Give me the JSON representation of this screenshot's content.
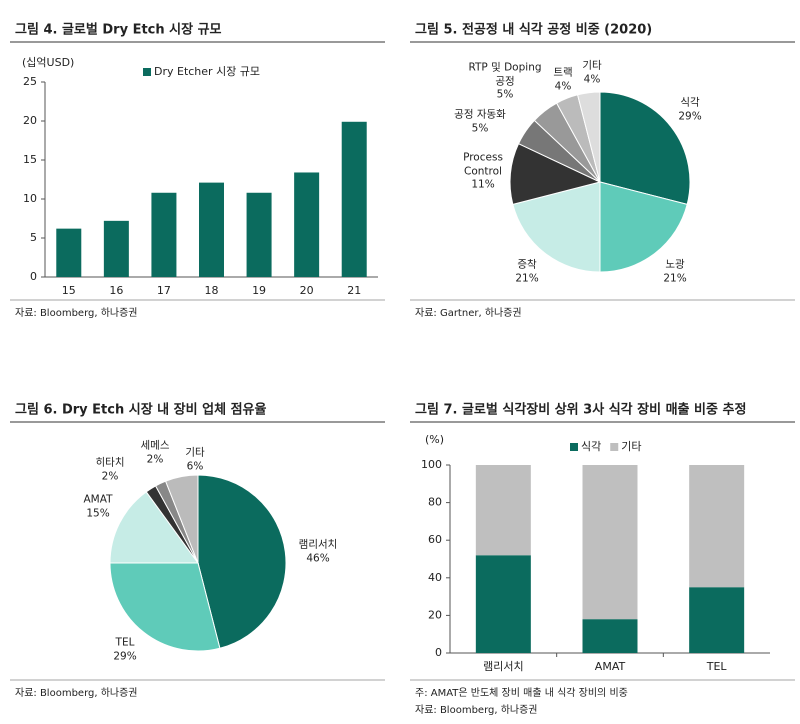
{
  "chart_data": [
    {
      "type": "bar",
      "title": "그림 4. 글로벌 Dry Etch 시장 규모",
      "y_label": "(십억USD)",
      "categories": [
        "15",
        "16",
        "17",
        "18",
        "19",
        "20",
        "21"
      ],
      "series": [
        {
          "name": "Dry Etcher 시장 규모",
          "color": "#0b6b5e",
          "values": [
            6.2,
            7.2,
            10.8,
            12.1,
            10.8,
            13.4,
            19.9
          ]
        }
      ],
      "ylim": [
        0,
        25
      ],
      "yticks": [
        0,
        5,
        10,
        15,
        20,
        25
      ],
      "grid": false,
      "source": "자료: Bloomberg, 하나증권"
    },
    {
      "type": "pie",
      "title": "그림 5. 전공정 내 식각 공정 비중 (2020)",
      "categories": [
        "식각",
        "노광",
        "증착",
        "Process Control",
        "공정 자동화",
        "RTP 및 Doping 공정",
        "트랙",
        "기타"
      ],
      "values": [
        29,
        21,
        21,
        11,
        5,
        5,
        4,
        4
      ],
      "value_labels": [
        "29%",
        "21%",
        "21%",
        "11%",
        "5%",
        "5%",
        "4%",
        "4%"
      ],
      "colors": [
        "#0b6b5e",
        "#5fcbb9",
        "#c6ece6",
        "#333333",
        "#777777",
        "#999999",
        "#bbbbbb",
        "#dddddd"
      ],
      "source": "자료: Gartner, 하나증권"
    },
    {
      "type": "pie",
      "title": "그림 6. Dry Etch 시장 내 장비 업체 점유율",
      "categories": [
        "램리서치",
        "TEL",
        "AMAT",
        "히타치",
        "세메스",
        "기타"
      ],
      "values": [
        46,
        29,
        15,
        2,
        2,
        6
      ],
      "value_labels": [
        "46%",
        "29%",
        "15%",
        "2%",
        "2%",
        "6%"
      ],
      "colors": [
        "#0b6b5e",
        "#5fcbb9",
        "#c6ece6",
        "#333333",
        "#888888",
        "#bbbbbb"
      ],
      "source": "자료: Bloomberg, 하나증권"
    },
    {
      "type": "stacked_bar",
      "title": "그림 7. 글로벌 식각장비 상위 3사 식각 장비 매출 비중 추정",
      "y_label": "(%)",
      "categories": [
        "램리서치",
        "AMAT",
        "TEL"
      ],
      "series": [
        {
          "name": "식각",
          "color": "#0b6b5e",
          "values": [
            52,
            18,
            35
          ]
        },
        {
          "name": "기타",
          "color": "#bfbfbf",
          "values": [
            48,
            82,
            65
          ]
        }
      ],
      "ylim": [
        0,
        100
      ],
      "yticks": [
        0,
        20,
        40,
        60,
        80,
        100
      ],
      "grid": false,
      "note": "주: AMAT은 반도체 장비 매출 내 식각 장비의 비중",
      "source": "자료: Bloomberg, 하나증권"
    }
  ]
}
